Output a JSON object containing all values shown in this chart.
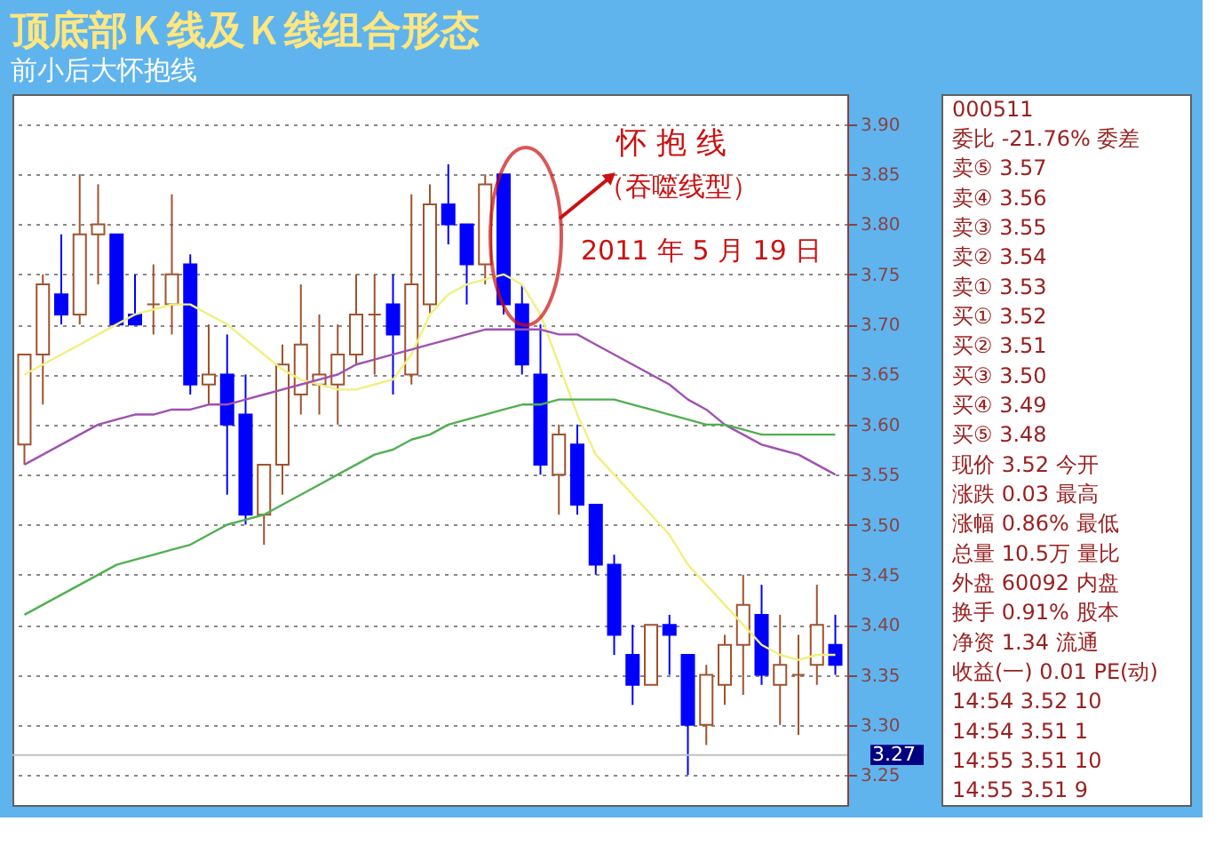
{
  "chart_data": [
    {
      "type": "candlestick",
      "title": "顶底部Ｋ线及Ｋ线组合形态",
      "subtitle": "前小后大怀抱线",
      "categories": [
        null,
        null,
        null,
        null,
        null,
        null,
        null,
        null,
        null,
        null,
        null,
        null,
        null,
        null,
        null,
        null,
        null,
        null,
        null,
        null,
        null,
        null,
        null,
        null,
        null,
        null,
        null,
        null,
        null,
        null,
        null,
        null,
        null,
        null,
        null,
        null,
        null,
        null,
        null,
        null,
        null,
        null,
        null,
        null,
        null
      ],
      "ohlc": [
        [
          3.58,
          3.67,
          3.56,
          3.67
        ],
        [
          3.67,
          3.75,
          3.62,
          3.74
        ],
        [
          3.73,
          3.79,
          3.7,
          3.71
        ],
        [
          3.71,
          3.85,
          3.7,
          3.79
        ],
        [
          3.79,
          3.84,
          3.74,
          3.8
        ],
        [
          3.79,
          3.79,
          3.7,
          3.7
        ],
        [
          3.71,
          3.75,
          3.7,
          3.7
        ],
        [
          3.72,
          3.76,
          3.69,
          3.72
        ],
        [
          3.72,
          3.83,
          3.69,
          3.75
        ],
        [
          3.76,
          3.77,
          3.63,
          3.64
        ],
        [
          3.64,
          3.7,
          3.62,
          3.65
        ],
        [
          3.65,
          3.69,
          3.53,
          3.6
        ],
        [
          3.61,
          3.65,
          3.5,
          3.51
        ],
        [
          3.51,
          3.56,
          3.48,
          3.56
        ],
        [
          3.56,
          3.68,
          3.53,
          3.66
        ],
        [
          3.63,
          3.74,
          3.61,
          3.68
        ],
        [
          3.64,
          3.71,
          3.61,
          3.65
        ],
        [
          3.64,
          3.7,
          3.6,
          3.67
        ],
        [
          3.67,
          3.75,
          3.66,
          3.71
        ],
        [
          3.71,
          3.75,
          3.65,
          3.71
        ],
        [
          3.72,
          3.75,
          3.63,
          3.69
        ],
        [
          3.65,
          3.83,
          3.64,
          3.74
        ],
        [
          3.72,
          3.84,
          3.71,
          3.82
        ],
        [
          3.82,
          3.86,
          3.78,
          3.8
        ],
        [
          3.8,
          3.8,
          3.72,
          3.76
        ],
        [
          3.76,
          3.85,
          3.74,
          3.84
        ],
        [
          3.85,
          3.85,
          3.71,
          3.72
        ],
        [
          3.72,
          3.74,
          3.65,
          3.66
        ],
        [
          3.65,
          3.7,
          3.55,
          3.56
        ],
        [
          3.55,
          3.6,
          3.51,
          3.59
        ],
        [
          3.58,
          3.6,
          3.51,
          3.52
        ],
        [
          3.52,
          3.52,
          3.45,
          3.46
        ],
        [
          3.46,
          3.47,
          3.37,
          3.39
        ],
        [
          3.37,
          3.4,
          3.32,
          3.34
        ],
        [
          3.34,
          3.4,
          3.34,
          3.4
        ],
        [
          3.4,
          3.41,
          3.35,
          3.39
        ],
        [
          3.37,
          3.37,
          3.25,
          3.3
        ],
        [
          3.3,
          3.36,
          3.28,
          3.35
        ],
        [
          3.34,
          3.39,
          3.32,
          3.38
        ],
        [
          3.38,
          3.45,
          3.33,
          3.42
        ],
        [
          3.41,
          3.44,
          3.34,
          3.35
        ],
        [
          3.34,
          3.41,
          3.3,
          3.36
        ],
        [
          3.35,
          3.39,
          3.29,
          3.35
        ],
        [
          3.36,
          3.44,
          3.34,
          3.4
        ],
        [
          3.38,
          3.41,
          3.35,
          3.36
        ]
      ],
      "series": [
        {
          "type": "line",
          "color": "#f0f080",
          "values": [
            3.65,
            3.66,
            3.67,
            3.68,
            3.69,
            3.7,
            3.71,
            3.715,
            3.72,
            3.72,
            3.71,
            3.7,
            3.685,
            3.67,
            3.655,
            3.645,
            3.64,
            3.635,
            3.635,
            3.64,
            3.645,
            3.67,
            3.71,
            3.73,
            3.74,
            3.745,
            3.75,
            3.74,
            3.71,
            3.66,
            3.61,
            3.57,
            3.55,
            3.53,
            3.51,
            3.49,
            3.46,
            3.44,
            3.42,
            3.4,
            3.38,
            3.37,
            3.365,
            3.37,
            3.37
          ]
        },
        {
          "type": "line",
          "color": "#a050b0",
          "values": [
            3.56,
            3.57,
            3.58,
            3.59,
            3.6,
            3.605,
            3.61,
            3.61,
            3.615,
            3.615,
            3.62,
            3.62,
            3.625,
            3.63,
            3.635,
            3.64,
            3.645,
            3.65,
            3.66,
            3.665,
            3.67,
            3.675,
            3.68,
            3.685,
            3.69,
            3.695,
            3.695,
            3.695,
            3.695,
            3.69,
            3.69,
            3.68,
            3.67,
            3.66,
            3.65,
            3.64,
            3.625,
            3.615,
            3.6,
            3.59,
            3.58,
            3.575,
            3.57,
            3.56,
            3.55
          ]
        },
        {
          "type": "line",
          "color": "#50b050",
          "values": [
            3.41,
            3.42,
            3.43,
            3.44,
            3.45,
            3.46,
            3.465,
            3.47,
            3.475,
            3.48,
            3.49,
            3.5,
            3.505,
            3.51,
            3.52,
            3.53,
            3.54,
            3.55,
            3.56,
            3.57,
            3.575,
            3.585,
            3.59,
            3.6,
            3.605,
            3.61,
            3.615,
            3.62,
            3.62,
            3.625,
            3.625,
            3.625,
            3.625,
            3.62,
            3.615,
            3.61,
            3.605,
            3.6,
            3.6,
            3.595,
            3.59,
            3.59,
            3.59,
            3.59,
            3.59
          ]
        }
      ],
      "ylim": [
        3.22,
        3.93
      ],
      "yticks": [
        3.25,
        {
          "value": 3.3,
          "label": "3.30"
        },
        3.35,
        {
          "value": 3.4,
          "label": "3.40"
        },
        3.45,
        {
          "value": 3.5,
          "label": "3.50"
        },
        3.55,
        {
          "value": 3.6,
          "label": "3.60"
        },
        3.65,
        {
          "value": 3.7,
          "label": "3.70"
        },
        3.75,
        {
          "value": 3.8,
          "label": "3.80"
        },
        3.85,
        {
          "value": 3.9,
          "label": "3.90"
        }
      ],
      "grid": "y",
      "ref_lines": [
        {
          "axis": "y",
          "value": 3.27,
          "label": "3.27",
          "color": "#c0c0c0"
        }
      ],
      "annotations": [
        "怀 抱 线",
        "（吞噬线型）",
        "2011 年 5 月 19 日"
      ]
    },
    {
      "type": "other",
      "annotations": [
        "000511",
        "委比 -21.76% 委差",
        "卖⑤ 3.57",
        "卖④ 3.56",
        "卖③ 3.55",
        "卖② 3.54",
        "卖① 3.53",
        "买① 3.52",
        "买② 3.51",
        "买③ 3.50",
        "买④ 3.49",
        "买⑤ 3.48",
        "现价 3.52 今开",
        "涨跌 0.03 最高",
        "涨幅 0.86% 最低",
        "总量 10.5万 量比",
        "外盘 60092 内盘",
        "换手 0.91% 股本",
        "净资 1.34 流通",
        "收益(一) 0.01 PE(动)",
        "14:54 3.52 10",
        "14:54 3.51 1",
        "14:55 3.51 10",
        "14:55 3.51 9"
      ]
    }
  ]
}
